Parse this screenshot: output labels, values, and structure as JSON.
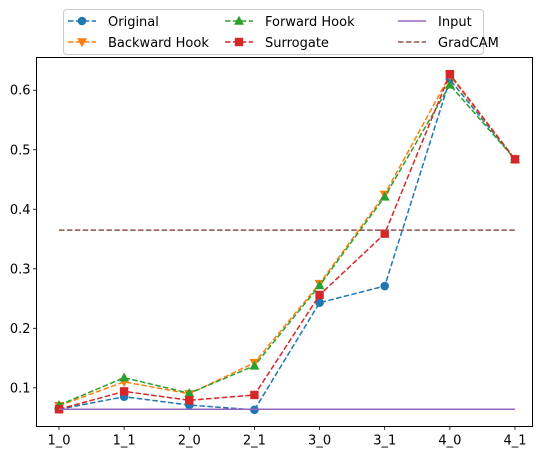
{
  "chart_data": {
    "type": "line",
    "categories": [
      "1_0",
      "1_1",
      "2_0",
      "2_1",
      "3_0",
      "3_1",
      "4_0",
      "4_1"
    ],
    "ylim": [
      0.035,
      0.655
    ],
    "yticks": [
      0.1,
      0.2,
      0.3,
      0.4,
      0.5,
      0.6
    ],
    "ytick_labels": [
      "0.1",
      "0.2",
      "0.3",
      "0.4",
      "0.5",
      "0.6"
    ],
    "grid": false,
    "legend": {
      "placement": "top, above plot",
      "columns": 3
    },
    "series": [
      {
        "name": "Original",
        "color": "#1f77b4",
        "dash": "dashed",
        "marker": "circle",
        "values": [
          0.064,
          0.085,
          0.071,
          0.063,
          0.243,
          0.271,
          0.618,
          0.484
        ]
      },
      {
        "name": "Backward Hook",
        "color": "#ff7f0e",
        "dash": "dashed",
        "marker": "triangle-down",
        "values": [
          0.07,
          0.11,
          0.09,
          0.142,
          0.275,
          0.425,
          0.625,
          0.484
        ]
      },
      {
        "name": "Forward Hook",
        "color": "#2ca02c",
        "dash": "dashed",
        "marker": "triangle-up",
        "values": [
          0.071,
          0.117,
          0.091,
          0.137,
          0.272,
          0.421,
          0.609,
          0.484
        ]
      },
      {
        "name": "Surrogate",
        "color": "#d62728",
        "dash": "dashed",
        "marker": "square",
        "values": [
          0.064,
          0.094,
          0.079,
          0.088,
          0.256,
          0.359,
          0.627,
          0.484
        ]
      },
      {
        "name": "Input",
        "color": "#9467bd",
        "dash": "solid",
        "marker": "none",
        "values": [
          0.064,
          0.064,
          0.064,
          0.064,
          0.064,
          0.064,
          0.064,
          0.064
        ]
      },
      {
        "name": "GradCAM",
        "color": "#8c564b",
        "dash": "dashed",
        "marker": "none",
        "values": [
          0.365,
          0.365,
          0.365,
          0.365,
          0.365,
          0.365,
          0.365,
          0.365
        ]
      }
    ]
  }
}
